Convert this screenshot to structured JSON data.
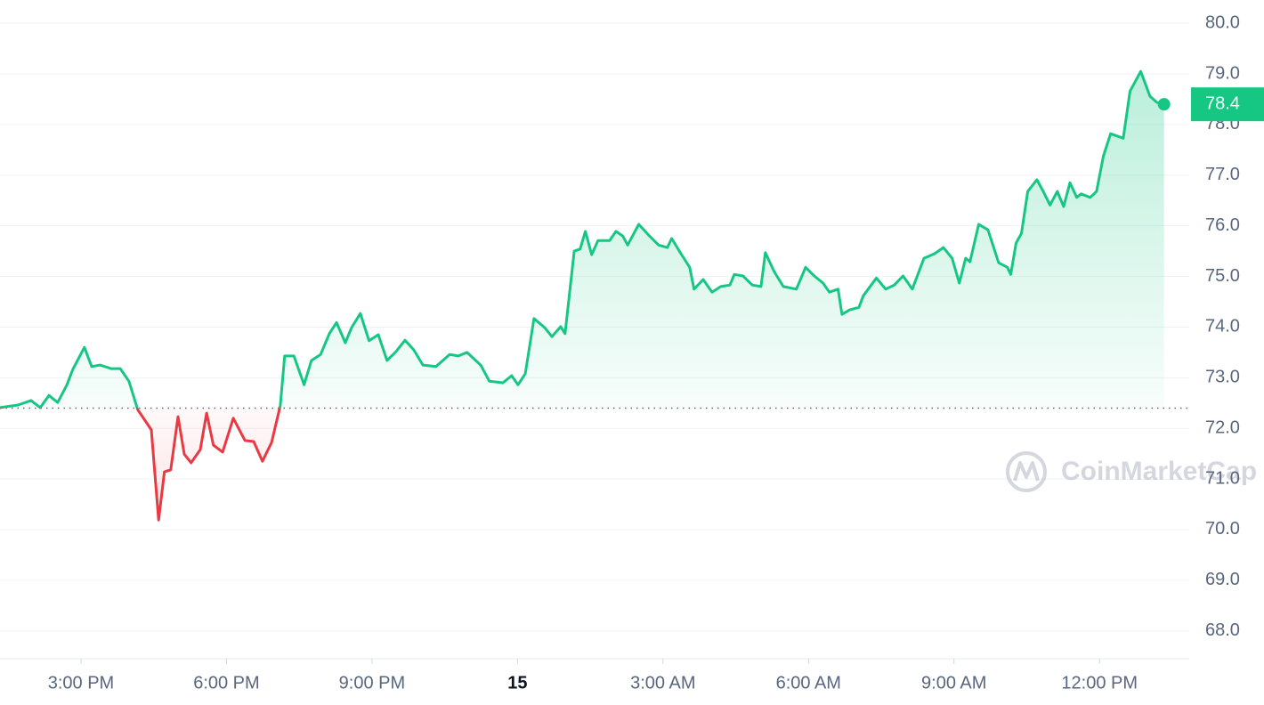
{
  "chart_data": {
    "type": "line",
    "watermark": "CoinMarketCap",
    "x": [
      -10.67,
      -10.3,
      -10.03,
      -9.84,
      -9.66,
      -9.48,
      -9.29,
      -9.17,
      -8.93,
      -8.78,
      -8.61,
      -8.38,
      -8.19,
      -8.01,
      -7.83,
      -7.55,
      -7.4,
      -7.28,
      -7.15,
      -7.0,
      -6.87,
      -6.73,
      -6.54,
      -6.41,
      -6.27,
      -6.08,
      -5.86,
      -5.62,
      -5.44,
      -5.26,
      -5.07,
      -4.89,
      -4.8,
      -4.61,
      -4.4,
      -4.25,
      -4.06,
      -3.88,
      -3.73,
      -3.55,
      -3.42,
      -3.24,
      -3.06,
      -2.87,
      -2.69,
      -2.51,
      -2.32,
      -2.14,
      -1.95,
      -1.68,
      -1.4,
      -1.22,
      -1.04,
      -0.76,
      -0.58,
      -0.3,
      -0.12,
      0.01,
      0.16,
      0.34,
      0.56,
      0.71,
      0.89,
      0.98,
      1.17,
      1.29,
      1.4,
      1.53,
      1.66,
      1.9,
      2.03,
      2.17,
      2.27,
      2.5,
      2.72,
      2.91,
      3.09,
      3.18,
      3.37,
      3.55,
      3.64,
      3.83,
      4.01,
      4.19,
      4.38,
      4.47,
      4.65,
      4.84,
      5.02,
      5.11,
      5.29,
      5.48,
      5.75,
      5.94,
      6.12,
      6.3,
      6.43,
      6.61,
      6.69,
      6.85,
      7.04,
      7.13,
      7.4,
      7.59,
      7.77,
      7.95,
      8.14,
      8.38,
      8.6,
      8.78,
      8.96,
      9.11,
      9.24,
      9.33,
      9.51,
      9.7,
      9.92,
      10.1,
      10.17,
      10.28,
      10.39,
      10.52,
      10.71,
      10.84,
      10.98,
      11.13,
      11.26,
      11.39,
      11.53,
      11.62,
      11.81,
      11.94,
      12.08,
      12.23,
      12.49,
      12.63,
      12.85,
      13.04,
      13.18,
      13.33
    ],
    "values": [
      72.41,
      72.46,
      72.55,
      72.41,
      72.65,
      72.51,
      72.86,
      73.16,
      73.6,
      73.22,
      73.25,
      73.18,
      73.18,
      72.93,
      72.37,
      71.97,
      70.19,
      71.14,
      71.18,
      72.23,
      71.49,
      71.32,
      71.58,
      72.3,
      71.67,
      71.53,
      72.2,
      71.76,
      71.74,
      71.35,
      71.72,
      72.45,
      73.43,
      73.43,
      72.86,
      73.34,
      73.46,
      73.87,
      74.09,
      73.69,
      73.99,
      74.27,
      73.73,
      73.85,
      73.34,
      73.51,
      73.74,
      73.55,
      73.25,
      73.22,
      73.46,
      73.43,
      73.5,
      73.25,
      72.93,
      72.9,
      73.04,
      72.86,
      73.08,
      74.17,
      73.99,
      73.81,
      74.01,
      73.87,
      75.5,
      75.54,
      75.89,
      75.43,
      75.71,
      75.71,
      75.89,
      75.8,
      75.62,
      76.03,
      75.8,
      75.62,
      75.57,
      75.75,
      75.45,
      75.18,
      74.75,
      74.94,
      74.69,
      74.8,
      74.83,
      75.04,
      75.01,
      74.83,
      74.8,
      75.47,
      75.1,
      74.8,
      74.75,
      75.18,
      75.01,
      74.87,
      74.69,
      74.75,
      74.25,
      74.34,
      74.39,
      74.62,
      74.97,
      74.75,
      74.83,
      75.01,
      74.75,
      75.36,
      75.45,
      75.57,
      75.36,
      74.87,
      75.36,
      75.29,
      76.03,
      75.92,
      75.27,
      75.18,
      75.04,
      75.66,
      75.85,
      76.68,
      76.91,
      76.68,
      76.41,
      76.68,
      76.38,
      76.85,
      76.56,
      76.63,
      76.56,
      76.68,
      77.38,
      77.82,
      77.73,
      78.66,
      79.05,
      78.56,
      78.44,
      78.4
    ],
    "baseline": 72.4,
    "color_up": "#16c784",
    "color_down": "#ea3943",
    "xlim": [
      -10.67,
      13.85
    ],
    "ylim": [
      67.45,
      80.46
    ],
    "xticks": [
      {
        "value": -9,
        "label": "3:00 PM"
      },
      {
        "value": -6,
        "label": "6:00 PM"
      },
      {
        "value": -3,
        "label": "9:00 PM"
      },
      {
        "value": 0,
        "label": "15"
      },
      {
        "value": 3,
        "label": "3:00 AM"
      },
      {
        "value": 6,
        "label": "6:00 AM"
      },
      {
        "value": 9,
        "label": "9:00 AM"
      },
      {
        "value": 12,
        "label": "12:00 PM"
      }
    ],
    "yticks": [
      {
        "value": 68,
        "label": "68.0"
      },
      {
        "value": 69,
        "label": "69.0"
      },
      {
        "value": 70,
        "label": "70.0"
      },
      {
        "value": 71,
        "label": "71.0"
      },
      {
        "value": 72,
        "label": "72.0"
      },
      {
        "value": 73,
        "label": "73.0"
      },
      {
        "value": 74,
        "label": "74.0"
      },
      {
        "value": 75,
        "label": "75.0"
      },
      {
        "value": 76,
        "label": "76.0"
      },
      {
        "value": 77,
        "label": "77.0"
      },
      {
        "value": 78,
        "label": "78.0"
      },
      {
        "value": 79,
        "label": "79.0"
      },
      {
        "value": 80,
        "label": "80.0"
      }
    ],
    "grid": true
  }
}
